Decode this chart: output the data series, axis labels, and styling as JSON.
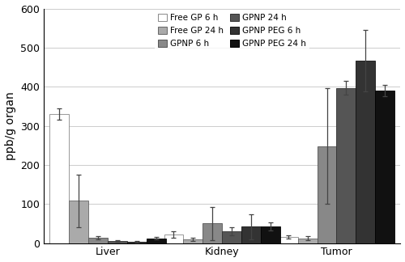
{
  "groups": [
    "Liver",
    "Kidney",
    "Tumor"
  ],
  "series": [
    {
      "label": "Free GP 6 h",
      "color": "#ffffff",
      "edgecolor": "#888888",
      "values": [
        330,
        22,
        16
      ],
      "errors": [
        15,
        8,
        4
      ]
    },
    {
      "label": "Free GP 24 h",
      "color": "#aaaaaa",
      "edgecolor": "#666666",
      "values": [
        108,
        10,
        12
      ],
      "errors": [
        68,
        4,
        5
      ]
    },
    {
      "label": "GPNP 6 h",
      "color": "#888888",
      "edgecolor": "#555555",
      "values": [
        14,
        50,
        248
      ],
      "errors": [
        4,
        42,
        148
      ]
    },
    {
      "label": "GPNP 24 h",
      "color": "#555555",
      "edgecolor": "#333333",
      "values": [
        5,
        30,
        397
      ],
      "errors": [
        2,
        10,
        18
      ]
    },
    {
      "label": "GPNP PEG 6 h",
      "color": "#333333",
      "edgecolor": "#111111",
      "values": [
        4,
        42,
        467
      ],
      "errors": [
        2,
        32,
        78
      ]
    },
    {
      "label": "GPNP PEG 24 h",
      "color": "#111111",
      "edgecolor": "#000000",
      "values": [
        12,
        42,
        390
      ],
      "errors": [
        3,
        10,
        14
      ]
    }
  ],
  "ylabel": "ppb/g organ",
  "ylim": [
    0,
    600
  ],
  "yticks": [
    0,
    100,
    200,
    300,
    400,
    500,
    600
  ],
  "bar_width": 0.115,
  "figsize": [
    5.0,
    3.24
  ],
  "dpi": 100
}
